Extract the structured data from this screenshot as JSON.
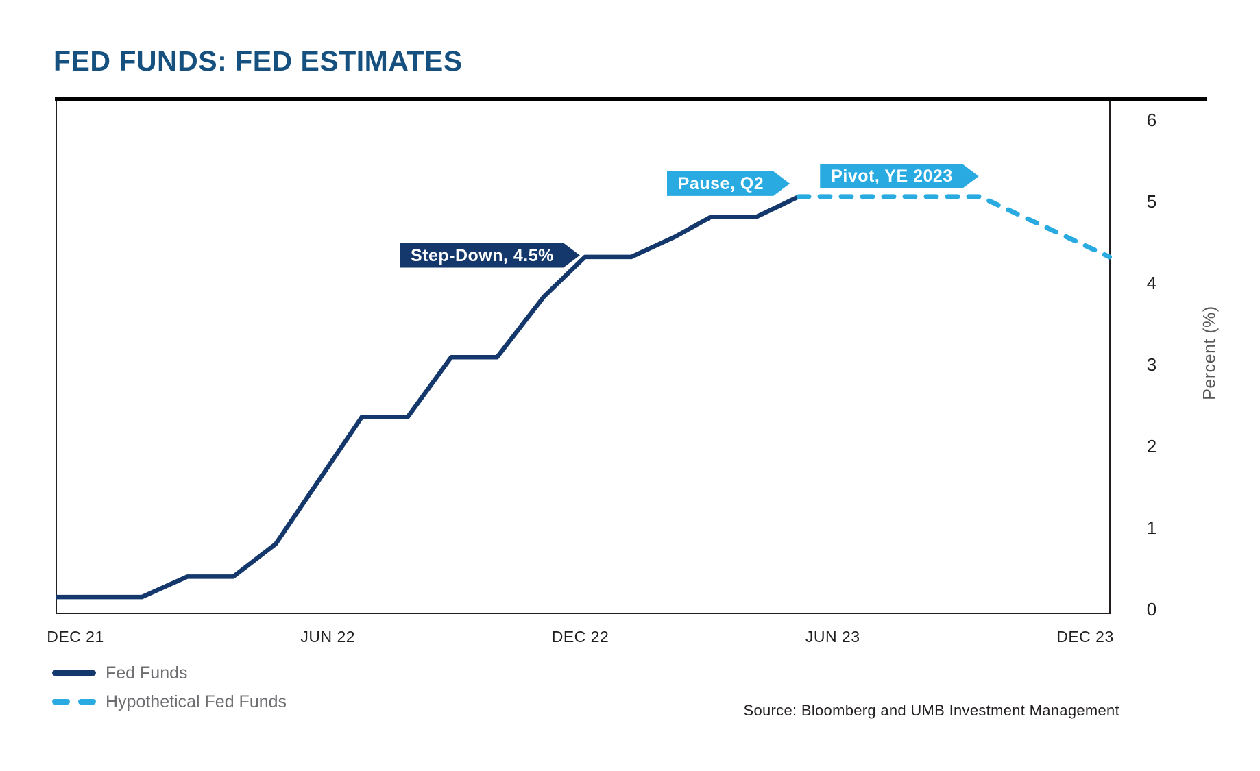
{
  "title": "FED FUNDS: FED ESTIMATES",
  "source": "Source: Bloomberg and UMB Investment Management",
  "colors": {
    "navy": "#14386b",
    "light_blue": "#29abe2",
    "title_blue": "#15507f",
    "legend_text": "#6d6e71",
    "axis_text": "#1e1e1e",
    "muted_axis": "#58595b",
    "source_text": "#231f20",
    "border": "#231f20",
    "top_rule": "#000000",
    "badge_text": "#ffffff"
  },
  "legend": {
    "items": [
      {
        "label": "Fed Funds",
        "style": "solid",
        "color_key": "navy"
      },
      {
        "label": "Hypothetical Fed Funds",
        "style": "dashed",
        "color_key": "light_blue"
      }
    ]
  },
  "chart_data": {
    "type": "line",
    "title": "FED FUNDS: FED ESTIMATES",
    "xlabel": "",
    "ylabel": "Percent (%)",
    "x_unit": "months since Dec 2021",
    "xlim": [
      -0.46,
      24.58
    ],
    "ylim": [
      -0.05,
      6.25
    ],
    "grid": false,
    "legend_position": "bottom-left",
    "x_ticks": [
      {
        "label": "DEC 21",
        "m": 0
      },
      {
        "label": "JUN 22",
        "m": 6
      },
      {
        "label": "DEC 22",
        "m": 12
      },
      {
        "label": "JUN 23",
        "m": 18
      },
      {
        "label": "DEC 23",
        "m": 24
      }
    ],
    "y_ticks": [
      {
        "label": "6",
        "v": 6
      },
      {
        "label": "5",
        "v": 5
      },
      {
        "label": "4",
        "v": 4
      },
      {
        "label": "3",
        "v": 3
      },
      {
        "label": "2",
        "v": 2
      },
      {
        "label": "1",
        "v": 1
      },
      {
        "label": "0",
        "v": 0
      }
    ],
    "series": [
      {
        "name": "Fed Funds",
        "style": "solid",
        "color_key": "navy",
        "points": [
          [
            -0.46,
            0.15
          ],
          [
            1.58,
            0.15
          ],
          [
            2.66,
            0.4
          ],
          [
            3.75,
            0.4
          ],
          [
            4.76,
            0.8
          ],
          [
            6.81,
            2.36
          ],
          [
            7.9,
            2.36
          ],
          [
            8.93,
            3.09
          ],
          [
            10.02,
            3.09
          ],
          [
            11.13,
            3.83
          ],
          [
            12.11,
            4.32
          ],
          [
            13.21,
            4.32
          ],
          [
            14.26,
            4.57
          ],
          [
            15.1,
            4.81
          ],
          [
            16.18,
            4.81
          ],
          [
            17.19,
            5.06
          ]
        ]
      },
      {
        "name": "Hypothetical Fed Funds",
        "style": "dashed",
        "color_key": "light_blue",
        "points": [
          [
            17.19,
            5.06
          ],
          [
            21.5,
            5.06
          ],
          [
            24.58,
            4.32
          ]
        ]
      }
    ],
    "annotations": [
      {
        "label": "Step-Down, 4.5%",
        "color_key": "navy",
        "tip_m": 11.99,
        "tip_v": 4.34
      },
      {
        "label": "Pause, Q2",
        "color_key": "light_blue",
        "tip_m": 16.98,
        "tip_v": 5.22
      },
      {
        "label": "Pivot, YE 2023",
        "color_key": "light_blue",
        "tip_m": 21.47,
        "tip_v": 5.31
      }
    ]
  }
}
